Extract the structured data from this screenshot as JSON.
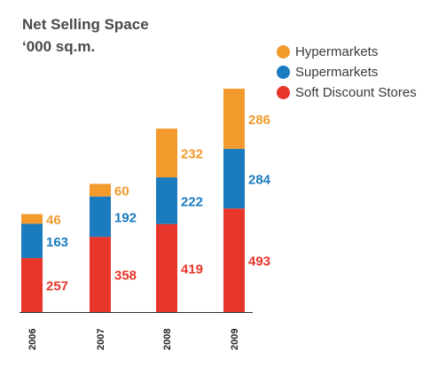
{
  "title": "Net Selling Space",
  "subtitle": "‘000 sq.m.",
  "chart_data": {
    "type": "bar",
    "stacked": true,
    "categories": [
      "2006",
      "2007",
      "2008",
      "2009"
    ],
    "series": [
      {
        "name": "Soft Discount Stores",
        "color": "#e8352a",
        "values": [
          257,
          358,
          419,
          493
        ]
      },
      {
        "name": "Supermarkets",
        "color": "#1a7bbf",
        "values": [
          163,
          192,
          222,
          284
        ]
      },
      {
        "name": "Hypermarkets",
        "color": "#f39a2d",
        "values": [
          46,
          60,
          232,
          286
        ]
      }
    ],
    "legend": {
      "placement": "top-right",
      "order": [
        "Hypermarkets",
        "Supermarkets",
        "Soft Discount Stores"
      ]
    },
    "title": "Net Selling Space",
    "subtitle": "‘000 sq.m.",
    "grid": false
  }
}
